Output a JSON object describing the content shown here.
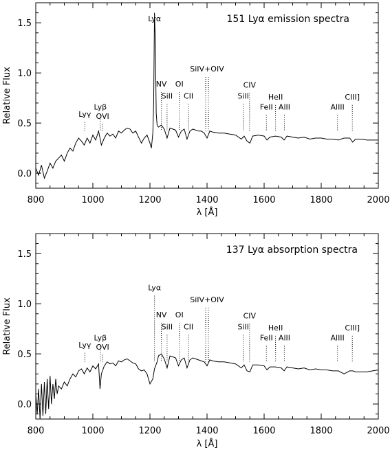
{
  "chart_data": [
    {
      "type": "line",
      "title": "151 Lyα emission spectra",
      "xlabel": "λ [Å]",
      "ylabel": "Relative Flux",
      "xlim": [
        800,
        2000
      ],
      "ylim": [
        -0.15,
        1.7
      ],
      "xticks": [
        800,
        1000,
        1200,
        1400,
        1600,
        1800,
        2000
      ],
      "xtick_labels": [
        "800",
        "1000",
        "1200",
        "1400",
        "1600",
        "1800",
        "2000"
      ],
      "yticks": [
        0.0,
        0.5,
        1.0,
        1.5
      ],
      "ytick_labels": [
        "0.0",
        "0.5",
        "1.0",
        "1.5"
      ],
      "grid": false,
      "series": [
        {
          "x": [
            800,
            810,
            820,
            830,
            840,
            850,
            860,
            870,
            880,
            890,
            900,
            910,
            920,
            930,
            940,
            950,
            960,
            970,
            980,
            990,
            1000,
            1010,
            1020,
            1030,
            1040,
            1050,
            1060,
            1070,
            1080,
            1090,
            1100,
            1110,
            1120,
            1130,
            1140,
            1150,
            1160,
            1170,
            1180,
            1190,
            1200,
            1205,
            1210,
            1213,
            1216,
            1219,
            1222,
            1225,
            1230,
            1240,
            1250,
            1260,
            1270,
            1280,
            1290,
            1300,
            1310,
            1320,
            1330,
            1340,
            1350,
            1360,
            1370,
            1380,
            1390,
            1400,
            1410,
            1420,
            1440,
            1460,
            1480,
            1500,
            1520,
            1530,
            1540,
            1550,
            1560,
            1580,
            1600,
            1610,
            1620,
            1640,
            1660,
            1670,
            1680,
            1700,
            1720,
            1740,
            1760,
            1780,
            1800,
            1820,
            1840,
            1860,
            1880,
            1900,
            1910,
            1920,
            1940,
            1960,
            1980,
            2000
          ],
          "y": [
            0.05,
            -0.02,
            0.08,
            -0.05,
            0.02,
            0.1,
            0.05,
            0.12,
            0.15,
            0.18,
            0.12,
            0.2,
            0.25,
            0.22,
            0.3,
            0.35,
            0.32,
            0.28,
            0.35,
            0.3,
            0.38,
            0.33,
            0.42,
            0.28,
            0.35,
            0.4,
            0.37,
            0.39,
            0.35,
            0.42,
            0.4,
            0.43,
            0.45,
            0.44,
            0.4,
            0.42,
            0.36,
            0.3,
            0.35,
            0.38,
            0.3,
            0.25,
            0.4,
            0.7,
            1.6,
            1.3,
            0.6,
            0.48,
            0.46,
            0.48,
            0.44,
            0.35,
            0.45,
            0.44,
            0.43,
            0.36,
            0.42,
            0.44,
            0.34,
            0.42,
            0.44,
            0.43,
            0.42,
            0.42,
            0.4,
            0.35,
            0.42,
            0.41,
            0.4,
            0.4,
            0.39,
            0.38,
            0.34,
            0.37,
            0.32,
            0.3,
            0.37,
            0.38,
            0.37,
            0.33,
            0.36,
            0.37,
            0.36,
            0.33,
            0.37,
            0.36,
            0.35,
            0.36,
            0.34,
            0.35,
            0.35,
            0.34,
            0.34,
            0.33,
            0.35,
            0.35,
            0.31,
            0.34,
            0.34,
            0.33,
            0.33,
            0.33
          ]
        }
      ],
      "line_labels": [
        {
          "text": "Lyγ",
          "x": 972,
          "label_y": 0.55,
          "line_top": 0.51
        },
        {
          "text": "Lyβ",
          "x": 1026,
          "label_y": 0.62,
          "line_top": 0.58
        },
        {
          "text": "OVI",
          "x": 1034,
          "label_y": 0.53,
          "line_top": 0.49
        },
        {
          "text": "Lyα",
          "x": 1216,
          "label_y": 1.5,
          "line_top": 1.5,
          "no_line": true
        },
        {
          "text": "NV",
          "x": 1240,
          "label_y": 0.85,
          "line_top": 0.81
        },
        {
          "text": "SiII",
          "x": 1260,
          "label_y": 0.73,
          "line_top": 0.69
        },
        {
          "text": "OI",
          "x": 1303,
          "label_y": 0.85,
          "line_top": 0.81
        },
        {
          "text": "CII",
          "x": 1335,
          "label_y": 0.73,
          "line_top": 0.69
        },
        {
          "text": "SiIV+OIV",
          "x": 1400,
          "label_y": 1.0,
          "line_top": 0.96,
          "double": true
        },
        {
          "text": "SiII",
          "x": 1527,
          "label_y": 0.73,
          "line_top": 0.69
        },
        {
          "text": "CIV",
          "x": 1549,
          "label_y": 0.84,
          "line_top": 0.8
        },
        {
          "text": "HeII",
          "x": 1640,
          "label_y": 0.72,
          "line_top": 0.68
        },
        {
          "text": "FeII",
          "x": 1608,
          "label_y": 0.62,
          "line_top": 0.58
        },
        {
          "text": "AlII",
          "x": 1671,
          "label_y": 0.62,
          "line_top": 0.58
        },
        {
          "text": "AlIII",
          "x": 1857,
          "label_y": 0.62,
          "line_top": 0.58
        },
        {
          "text": "CIII]",
          "x": 1909,
          "label_y": 0.72,
          "line_top": 0.68
        }
      ]
    },
    {
      "type": "line",
      "title": "137 Lyα absorption spectra",
      "xlabel": "λ [Å]",
      "ylabel": "Relative Flux",
      "xlim": [
        800,
        2000
      ],
      "ylim": [
        -0.15,
        1.7
      ],
      "xticks": [
        800,
        1000,
        1200,
        1400,
        1600,
        1800,
        2000
      ],
      "xtick_labels": [
        "800",
        "1000",
        "1200",
        "1400",
        "1600",
        "1800",
        "2000"
      ],
      "yticks": [
        0.0,
        0.5,
        1.0,
        1.5
      ],
      "ytick_labels": [
        "0.0",
        "0.5",
        "1.0",
        "1.5"
      ],
      "grid": false,
      "series": [
        {
          "x": [
            800,
            805,
            810,
            815,
            820,
            825,
            830,
            835,
            840,
            845,
            850,
            855,
            860,
            865,
            870,
            875,
            880,
            890,
            900,
            910,
            920,
            930,
            940,
            950,
            960,
            970,
            980,
            990,
            1000,
            1010,
            1020,
            1025,
            1030,
            1040,
            1050,
            1060,
            1070,
            1080,
            1090,
            1100,
            1110,
            1120,
            1130,
            1140,
            1150,
            1160,
            1170,
            1180,
            1190,
            1200,
            1210,
            1216,
            1225,
            1230,
            1240,
            1250,
            1260,
            1270,
            1280,
            1290,
            1300,
            1310,
            1320,
            1330,
            1340,
            1350,
            1360,
            1370,
            1380,
            1390,
            1400,
            1410,
            1420,
            1440,
            1460,
            1480,
            1500,
            1520,
            1530,
            1540,
            1550,
            1560,
            1580,
            1600,
            1610,
            1620,
            1640,
            1660,
            1670,
            1680,
            1700,
            1720,
            1740,
            1760,
            1780,
            1800,
            1820,
            1840,
            1860,
            1880,
            1900,
            1910,
            1920,
            1940,
            1960,
            1980,
            2000
          ],
          "y": [
            0.1,
            -0.1,
            0.15,
            -0.15,
            0.2,
            -0.12,
            0.22,
            -0.1,
            0.25,
            -0.05,
            0.28,
            0.0,
            0.2,
            0.05,
            0.25,
            0.1,
            0.18,
            0.15,
            0.22,
            0.18,
            0.25,
            0.3,
            0.27,
            0.33,
            0.35,
            0.3,
            0.36,
            0.32,
            0.38,
            0.35,
            0.4,
            0.15,
            0.3,
            0.38,
            0.42,
            0.4,
            0.41,
            0.38,
            0.43,
            0.42,
            0.44,
            0.45,
            0.43,
            0.41,
            0.4,
            0.35,
            0.33,
            0.34,
            0.3,
            0.2,
            0.25,
            0.35,
            0.42,
            0.48,
            0.5,
            0.45,
            0.36,
            0.48,
            0.47,
            0.46,
            0.38,
            0.44,
            0.46,
            0.36,
            0.44,
            0.46,
            0.45,
            0.44,
            0.43,
            0.42,
            0.38,
            0.44,
            0.43,
            0.42,
            0.42,
            0.41,
            0.4,
            0.36,
            0.39,
            0.33,
            0.32,
            0.39,
            0.39,
            0.38,
            0.34,
            0.37,
            0.37,
            0.36,
            0.33,
            0.37,
            0.36,
            0.35,
            0.36,
            0.34,
            0.35,
            0.34,
            0.34,
            0.33,
            0.33,
            0.3,
            0.33,
            0.33,
            0.32,
            0.32,
            0.32,
            0.33,
            0.34
          ]
        }
      ],
      "line_labels": [
        {
          "text": "Lyγ",
          "x": 972,
          "label_y": 0.55,
          "line_top": 0.51
        },
        {
          "text": "Lyβ",
          "x": 1026,
          "label_y": 0.62,
          "line_top": 0.58
        },
        {
          "text": "OVI",
          "x": 1034,
          "label_y": 0.53,
          "line_top": 0.49
        },
        {
          "text": "Lyα",
          "x": 1216,
          "label_y": 1.12,
          "line_top": 1.08
        },
        {
          "text": "NV",
          "x": 1240,
          "label_y": 0.85,
          "line_top": 0.81
        },
        {
          "text": "SiII",
          "x": 1260,
          "label_y": 0.73,
          "line_top": 0.69
        },
        {
          "text": "OI",
          "x": 1303,
          "label_y": 0.85,
          "line_top": 0.81
        },
        {
          "text": "CII",
          "x": 1335,
          "label_y": 0.73,
          "line_top": 0.69
        },
        {
          "text": "SiIV+OIV",
          "x": 1400,
          "label_y": 1.0,
          "line_top": 0.96,
          "double": true
        },
        {
          "text": "SiII",
          "x": 1527,
          "label_y": 0.73,
          "line_top": 0.69
        },
        {
          "text": "CIV",
          "x": 1549,
          "label_y": 0.84,
          "line_top": 0.8
        },
        {
          "text": "HeII",
          "x": 1640,
          "label_y": 0.72,
          "line_top": 0.68
        },
        {
          "text": "FeII",
          "x": 1608,
          "label_y": 0.62,
          "line_top": 0.58
        },
        {
          "text": "AlII",
          "x": 1671,
          "label_y": 0.62,
          "line_top": 0.58
        },
        {
          "text": "AlIII",
          "x": 1857,
          "label_y": 0.62,
          "line_top": 0.58
        },
        {
          "text": "CIII]",
          "x": 1909,
          "label_y": 0.72,
          "line_top": 0.68
        }
      ]
    }
  ]
}
